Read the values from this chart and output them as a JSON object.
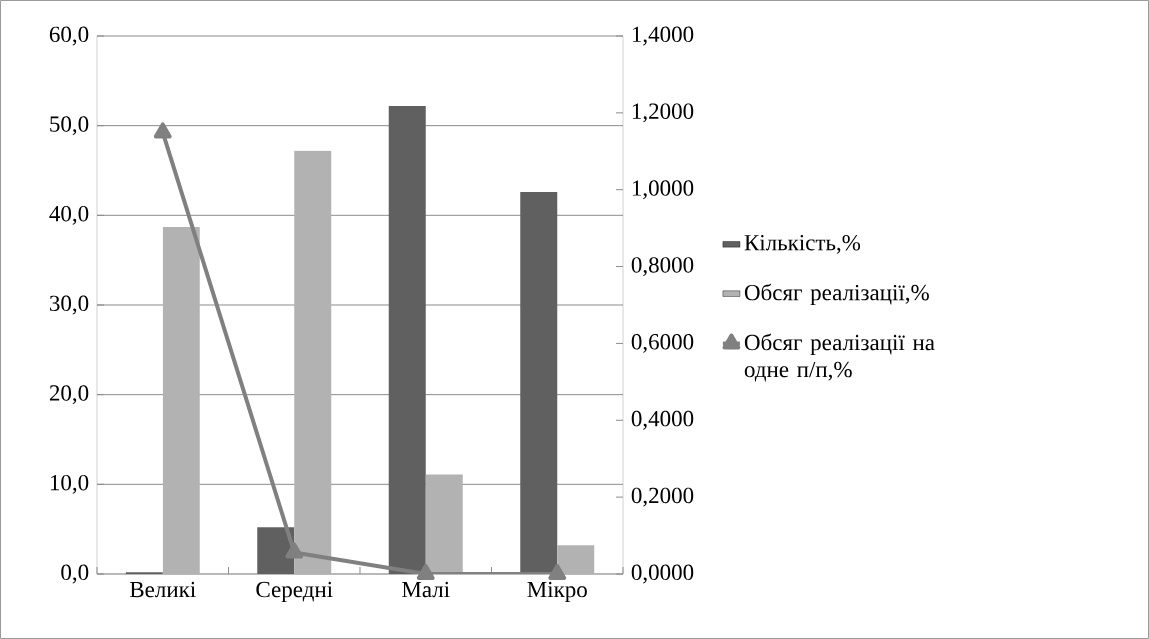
{
  "chart_data": {
    "type": "bar",
    "categories": [
      "Великі",
      "Середні",
      "Малі",
      "Мікро"
    ],
    "series": [
      {
        "name": "Кількість,%",
        "color": "#606060",
        "values": [
          0.2,
          5.2,
          52.2,
          42.6
        ]
      },
      {
        "name": "Обсяг реалізації,%",
        "color": "#b2b2b2",
        "values": [
          38.7,
          47.2,
          11.1,
          3.2
        ]
      },
      {
        "name": "Обсяг реалізації на одне п/п,%",
        "type": "line",
        "axis": "y2",
        "color": "#808080",
        "values": [
          1.149,
          0.056,
          0,
          0
        ]
      }
    ],
    "ylim": [
      0,
      60
    ],
    "yticks": [
      {
        "value": 0,
        "label": "0,0"
      },
      {
        "value": 10,
        "label": "10,0"
      },
      {
        "value": 20,
        "label": "20,0"
      },
      {
        "value": 30,
        "label": "30,0"
      },
      {
        "value": 40,
        "label": "40,0"
      },
      {
        "value": 50,
        "label": "50,0"
      },
      {
        "value": 60,
        "label": "60,0"
      }
    ],
    "y2lim": [
      0,
      1.4
    ],
    "y2ticks": [
      {
        "value": 0,
        "label": "0,0000"
      },
      {
        "value": 0.2,
        "label": "0,2000"
      },
      {
        "value": 0.4,
        "label": "0,4000"
      },
      {
        "value": 0.6,
        "label": "0,6000"
      },
      {
        "value": 0.8,
        "label": "0,8000"
      },
      {
        "value": 1,
        "label": "1,0000"
      },
      {
        "value": 1.2,
        "label": "1,2000"
      },
      {
        "value": 1.4,
        "label": "1,4000"
      }
    ],
    "grid": "y",
    "legend": "right",
    "marker": "triangle",
    "line_style": "solid"
  }
}
